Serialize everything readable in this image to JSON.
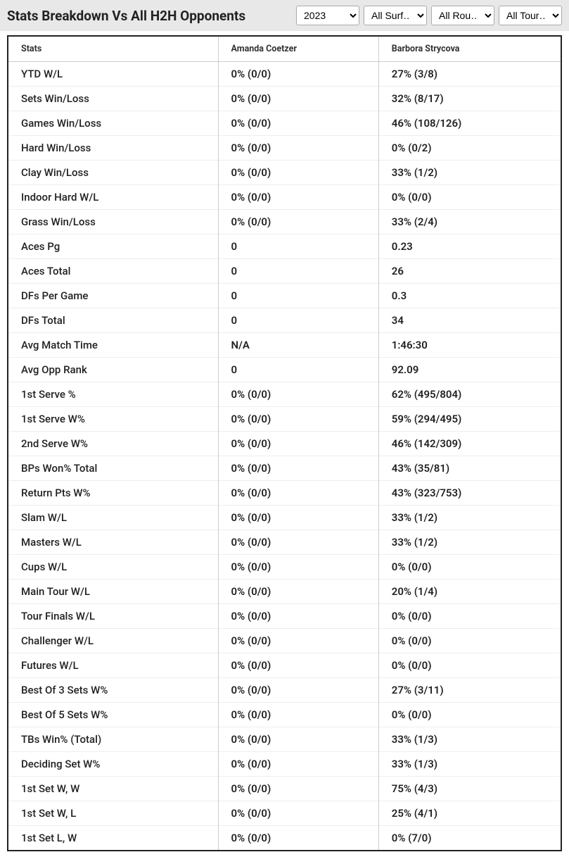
{
  "header": {
    "title": "Stats Breakdown Vs All H2H Opponents",
    "filters": {
      "year": "2023",
      "surface": "All Surf…",
      "round": "All Rou…",
      "tour": "All Tour…"
    }
  },
  "table": {
    "columns": {
      "stats": "Stats",
      "player1": "Amanda Coetzer",
      "player2": "Barbora Strycova"
    },
    "rows": [
      {
        "stat": "YTD W/L",
        "p1": "0% (0/0)",
        "p2": "27% (3/8)"
      },
      {
        "stat": "Sets Win/Loss",
        "p1": "0% (0/0)",
        "p2": "32% (8/17)"
      },
      {
        "stat": "Games Win/Loss",
        "p1": "0% (0/0)",
        "p2": "46% (108/126)"
      },
      {
        "stat": "Hard Win/Loss",
        "p1": "0% (0/0)",
        "p2": "0% (0/2)"
      },
      {
        "stat": "Clay Win/Loss",
        "p1": "0% (0/0)",
        "p2": "33% (1/2)"
      },
      {
        "stat": "Indoor Hard W/L",
        "p1": "0% (0/0)",
        "p2": "0% (0/0)"
      },
      {
        "stat": "Grass Win/Loss",
        "p1": "0% (0/0)",
        "p2": "33% (2/4)"
      },
      {
        "stat": "Aces Pg",
        "p1": "0",
        "p2": "0.23"
      },
      {
        "stat": "Aces Total",
        "p1": "0",
        "p2": "26"
      },
      {
        "stat": "DFs Per Game",
        "p1": "0",
        "p2": "0.3"
      },
      {
        "stat": "DFs Total",
        "p1": "0",
        "p2": "34"
      },
      {
        "stat": "Avg Match Time",
        "p1": "N/A",
        "p2": "1:46:30"
      },
      {
        "stat": "Avg Opp Rank",
        "p1": "0",
        "p2": "92.09"
      },
      {
        "stat": "1st Serve %",
        "p1": "0% (0/0)",
        "p2": "62% (495/804)"
      },
      {
        "stat": "1st Serve W%",
        "p1": "0% (0/0)",
        "p2": "59% (294/495)"
      },
      {
        "stat": "2nd Serve W%",
        "p1": "0% (0/0)",
        "p2": "46% (142/309)"
      },
      {
        "stat": "BPs Won% Total",
        "p1": "0% (0/0)",
        "p2": "43% (35/81)"
      },
      {
        "stat": "Return Pts W%",
        "p1": "0% (0/0)",
        "p2": "43% (323/753)"
      },
      {
        "stat": "Slam W/L",
        "p1": "0% (0/0)",
        "p2": "33% (1/2)"
      },
      {
        "stat": "Masters W/L",
        "p1": "0% (0/0)",
        "p2": "33% (1/2)"
      },
      {
        "stat": "Cups W/L",
        "p1": "0% (0/0)",
        "p2": "0% (0/0)"
      },
      {
        "stat": "Main Tour W/L",
        "p1": "0% (0/0)",
        "p2": "20% (1/4)"
      },
      {
        "stat": "Tour Finals W/L",
        "p1": "0% (0/0)",
        "p2": "0% (0/0)"
      },
      {
        "stat": "Challenger W/L",
        "p1": "0% (0/0)",
        "p2": "0% (0/0)"
      },
      {
        "stat": "Futures W/L",
        "p1": "0% (0/0)",
        "p2": "0% (0/0)"
      },
      {
        "stat": "Best Of 3 Sets W%",
        "p1": "0% (0/0)",
        "p2": "27% (3/11)"
      },
      {
        "stat": "Best Of 5 Sets W%",
        "p1": "0% (0/0)",
        "p2": "0% (0/0)"
      },
      {
        "stat": "TBs Win% (Total)",
        "p1": "0% (0/0)",
        "p2": "33% (1/3)"
      },
      {
        "stat": "Deciding Set W%",
        "p1": "0% (0/0)",
        "p2": "33% (1/3)"
      },
      {
        "stat": "1st Set W, W",
        "p1": "0% (0/0)",
        "p2": "75% (4/3)"
      },
      {
        "stat": "1st Set W, L",
        "p1": "0% (0/0)",
        "p2": "25% (4/1)"
      },
      {
        "stat": "1st Set L, W",
        "p1": "0% (0/0)",
        "p2": "0% (7/0)"
      }
    ]
  }
}
